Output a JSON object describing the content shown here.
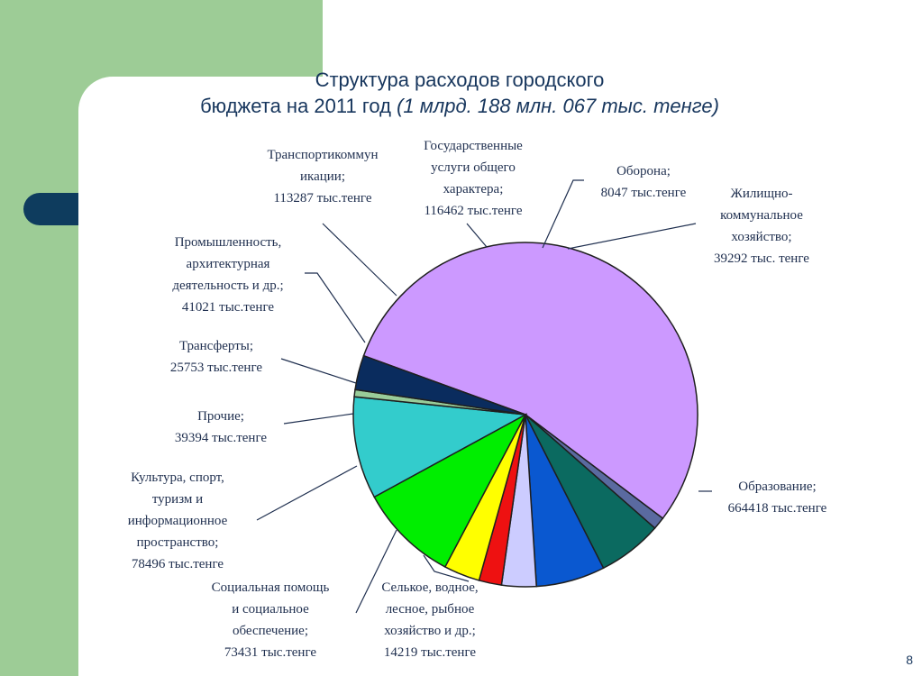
{
  "title": {
    "line1": "Структура расходов городского",
    "line2_plain": "бюджета на 2011 год ",
    "line2_italic": "(1 млрд. 188 млн. 067 тыс. тенге)"
  },
  "page_number": "8",
  "colors": {
    "sidebar": "#9dcc96",
    "accent_pill": "#0e3c5e",
    "title": "#17365d"
  },
  "chart_data": {
    "type": "pie",
    "unit": "тыс.тенге",
    "slices": [
      {
        "name": "Образование",
        "value": 664418,
        "color": "#cc99ff",
        "label": [
          "Образование;",
          "664418 тыс.тенге"
        ]
      },
      {
        "name": "Селькое, водное, лесное, рыбное хозяйство и др.",
        "value": 14219,
        "color": "#5a6aa0",
        "label": [
          "Селькое, водное,",
          "лесное, рыбное",
          "хозяйство и др.;",
          "14219 тыс.тенге"
        ]
      },
      {
        "name": "Социальная помощь и социальное обеспечение",
        "value": 73431,
        "color": "#0b6a60",
        "label": [
          "Социальная помощь",
          "и социальное",
          "обеспечение;",
          "73431 тыс.тенге"
        ]
      },
      {
        "name": "Культура, спорт, туризм и информационное пространство",
        "value": 78496,
        "color": "#0a58d0",
        "label": [
          "Культура, спорт,",
          "туризм и",
          "информационное",
          "пространство;",
          "78496 тыс.тенге"
        ]
      },
      {
        "name": "Прочие",
        "value": 39394,
        "color": "#ccccff",
        "label": [
          "Прочие;",
          "39394 тыс.тенге"
        ]
      },
      {
        "name": "Трансферты",
        "value": 25753,
        "color": "#ee1111",
        "label": [
          "Трансферты;",
          "25753 тыс.тенге"
        ]
      },
      {
        "name": "Промышленность, архитектурная деятельность и др.",
        "value": 41021,
        "color": "#ffff00",
        "label": [
          "Промышленность,",
          "архитектурная",
          "деятельность и др.;",
          "41021 тыс.тенге"
        ]
      },
      {
        "name": "Транспортикоммуникации",
        "value": 113287,
        "color": "#00ee00",
        "label": [
          "Транспортикоммун",
          "икации;",
          "113287 тыс.тенге"
        ]
      },
      {
        "name": "Государственные услуги общего характера",
        "value": 116462,
        "color": "#33cccc",
        "label": [
          "Государственные",
          "услуги общего",
          "характера;",
          "116462 тыс.тенге"
        ]
      },
      {
        "name": "Оборона",
        "value": 8047,
        "color": "#99cc99",
        "label": [
          "Оборона;",
          "8047 тыс.тенге"
        ]
      },
      {
        "name": "Жилищно-коммунальное хозяйство",
        "value": 39292,
        "color": "#0a2c5e",
        "label": [
          "Жилищно-",
          "коммунальное",
          "хозяйство;",
          "39292 тыс. тенге"
        ]
      }
    ]
  }
}
